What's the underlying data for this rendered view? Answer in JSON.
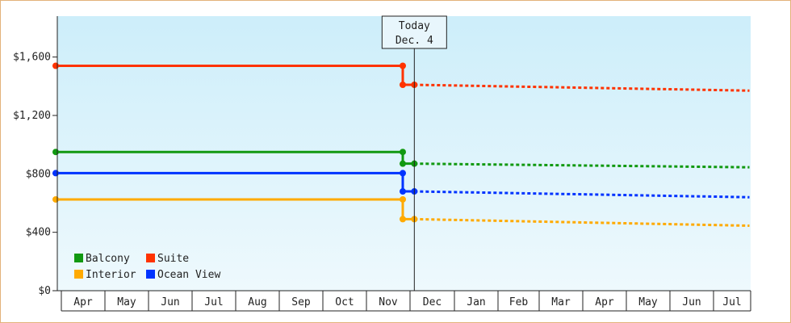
{
  "chart_data": {
    "type": "line",
    "y_ticks": [
      "$0",
      "$400",
      "$800",
      "$1,200",
      "$1,600"
    ],
    "ylim": [
      0,
      1880
    ],
    "months": [
      "Apr",
      "May",
      "Jun",
      "Jul",
      "Aug",
      "Sep",
      "Oct",
      "Nov",
      "Dec",
      "Jan",
      "Feb",
      "Mar",
      "Apr",
      "May",
      "Jun",
      "Jul"
    ],
    "today": {
      "line1": "Today",
      "line2": "Dec. 4",
      "x": "Dec 4"
    },
    "drop_x": "Nov 26",
    "series": [
      {
        "name": "Suite",
        "color": "#ff3300",
        "history": [
          {
            "x": "Apr 1",
            "y": 1540
          },
          {
            "x": "Nov 26",
            "y": 1540
          },
          {
            "x": "Nov 26",
            "y": 1410
          },
          {
            "x": "Dec 4",
            "y": 1410
          }
        ],
        "projection": [
          {
            "x": "Dec 4",
            "y": 1410
          },
          {
            "x": "Jul 31",
            "y": 1370
          }
        ]
      },
      {
        "name": "Balcony",
        "color": "#119911",
        "history": [
          {
            "x": "Apr 1",
            "y": 950
          },
          {
            "x": "Nov 26",
            "y": 950
          },
          {
            "x": "Nov 26",
            "y": 870
          },
          {
            "x": "Dec 4",
            "y": 870
          }
        ],
        "projection": [
          {
            "x": "Dec 4",
            "y": 870
          },
          {
            "x": "Jul 31",
            "y": 845
          }
        ]
      },
      {
        "name": "Ocean View",
        "color": "#0033ff",
        "history": [
          {
            "x": "Apr 1",
            "y": 805
          },
          {
            "x": "Nov 26",
            "y": 805
          },
          {
            "x": "Nov 26",
            "y": 680
          },
          {
            "x": "Dec 4",
            "y": 680
          }
        ],
        "projection": [
          {
            "x": "Dec 4",
            "y": 680
          },
          {
            "x": "Jul 31",
            "y": 640
          }
        ]
      },
      {
        "name": "Interior",
        "color": "#ffaa00",
        "history": [
          {
            "x": "Apr 1",
            "y": 625
          },
          {
            "x": "Nov 26",
            "y": 625
          },
          {
            "x": "Nov 26",
            "y": 490
          },
          {
            "x": "Dec 4",
            "y": 490
          }
        ],
        "projection": [
          {
            "x": "Dec 4",
            "y": 490
          },
          {
            "x": "Jul 31",
            "y": 445
          }
        ]
      }
    ],
    "legend": {
      "placement": "bottom-left",
      "order": [
        "Balcony",
        "Suite",
        "Interior",
        "Ocean View"
      ]
    }
  }
}
